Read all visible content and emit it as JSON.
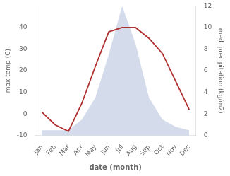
{
  "chart_data": {
    "type": "line",
    "xlabel": "date (month)",
    "ylabel": "max temp (C)",
    "y2label": "med. precipitation (kg/m2)",
    "categories": [
      "Jan",
      "Feb",
      "Mar",
      "Apr",
      "May",
      "Jun",
      "Jul",
      "Aug",
      "Sep",
      "Oct",
      "Nov",
      "Dec"
    ],
    "series": [
      {
        "type": "line",
        "color": "#b03030",
        "values": [
          1,
          -5,
          -8,
          5,
          22,
          38,
          40,
          40,
          35,
          28,
          15,
          2
        ]
      },
      {
        "type": "area",
        "color": "#b8c4e0",
        "axis": "y2",
        "values": [
          0.5,
          0.5,
          0.5,
          1.5,
          3.5,
          7.5,
          12.0,
          8.5,
          3.5,
          1.5,
          0.8,
          0.5
        ]
      }
    ],
    "ylim": [
      -10,
      50
    ],
    "yticks": [
      -10,
      0,
      10,
      20,
      30,
      40
    ],
    "y2lim": [
      0,
      12
    ],
    "y2ticks": [
      0,
      2,
      4,
      6,
      8,
      10,
      12
    ],
    "grid": false
  }
}
